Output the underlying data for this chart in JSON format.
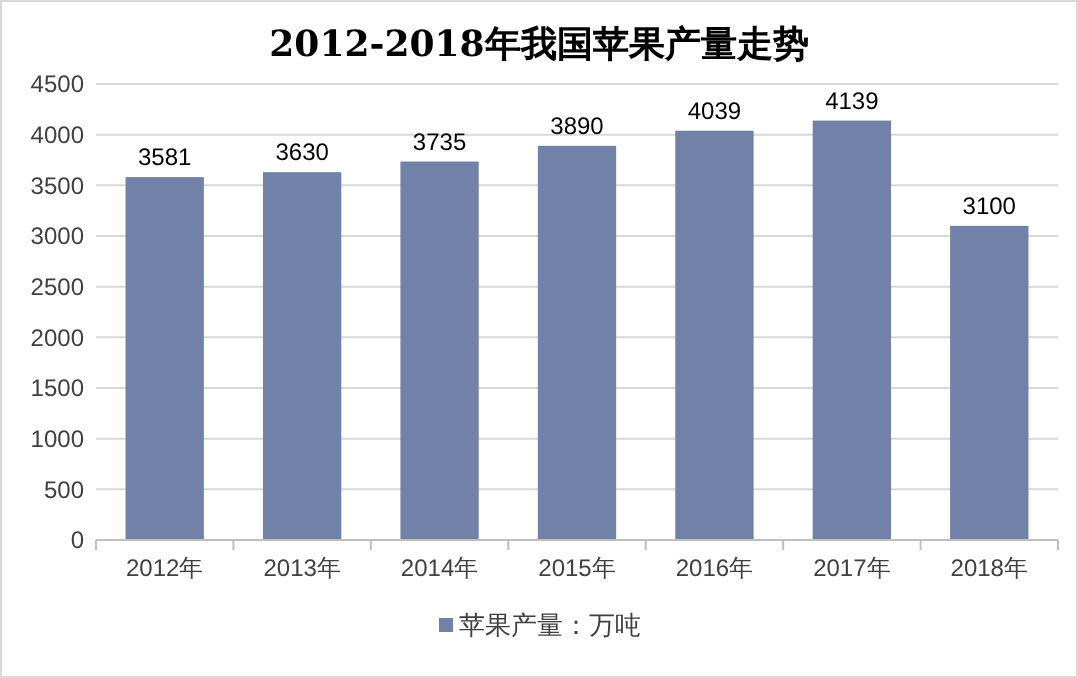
{
  "chart_data": {
    "type": "bar",
    "title": "2012-2018年我国苹果产量走势",
    "categories": [
      "2012年",
      "2013年",
      "2014年",
      "2015年",
      "2016年",
      "2017年",
      "2018年"
    ],
    "series": [
      {
        "name": "苹果产量：万吨",
        "color": "#7281a8",
        "values": [
          3581,
          3630,
          3735,
          3890,
          4039,
          4139,
          3100
        ]
      }
    ],
    "ylim": [
      0,
      4500
    ],
    "yticks": [
      0,
      500,
      1000,
      1500,
      2000,
      2500,
      3000,
      3500,
      4000,
      4500
    ],
    "grid": "y",
    "legend": "bottom",
    "data_labels": true
  }
}
